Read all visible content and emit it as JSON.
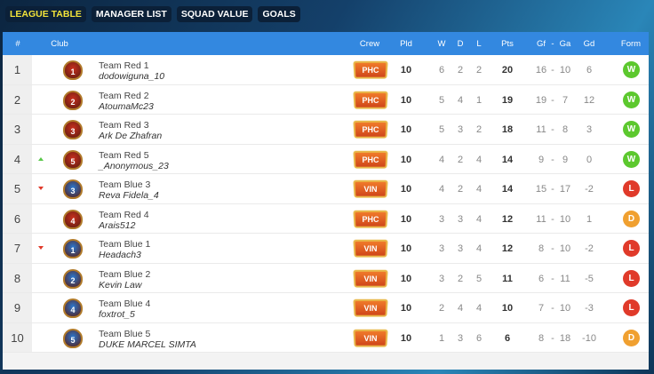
{
  "tabs": [
    {
      "label": "LEAGUE TABLE",
      "active": true
    },
    {
      "label": "MANAGER LIST"
    },
    {
      "label": "SQUAD VALUE"
    },
    {
      "label": "GOALS"
    }
  ],
  "headers": {
    "rank": "#",
    "club": "Club",
    "crew": "Crew",
    "pld": "Pld",
    "w": "W",
    "d": "D",
    "l": "L",
    "pts": "Pts",
    "gf": "Gf",
    "sep": "-",
    "ga": "Ga",
    "gd": "Gd",
    "form": "Form"
  },
  "colors": {
    "red_team": "#c8301e",
    "blue_team": "#2a78d0",
    "win": "#5cc82e",
    "loss": "#e03a2a",
    "draw": "#f0a030",
    "header": "#3388e0"
  },
  "rows": [
    {
      "rank": "1",
      "move": "",
      "badge": "1",
      "side": "red",
      "team": "Team Red 1",
      "manager": "dodowiguna_10",
      "crew": "PHC",
      "pld": "10",
      "w": "6",
      "d": "2",
      "l": "2",
      "pts": "20",
      "gf": "16",
      "sep": "-",
      "ga": "10",
      "gd": "6",
      "form": "W"
    },
    {
      "rank": "2",
      "move": "",
      "badge": "2",
      "side": "red",
      "team": "Team Red 2",
      "manager": "AtoumaMc23",
      "crew": "PHC",
      "pld": "10",
      "w": "5",
      "d": "4",
      "l": "1",
      "pts": "19",
      "gf": "19",
      "sep": "-",
      "ga": "7",
      "gd": "12",
      "form": "W"
    },
    {
      "rank": "3",
      "move": "",
      "badge": "3",
      "side": "red",
      "team": "Team Red 3",
      "manager": "Ark De Zhafran",
      "crew": "PHC",
      "pld": "10",
      "w": "5",
      "d": "3",
      "l": "2",
      "pts": "18",
      "gf": "11",
      "sep": "-",
      "ga": "8",
      "gd": "3",
      "form": "W"
    },
    {
      "rank": "4",
      "move": "up",
      "badge": "5",
      "side": "red",
      "team": "Team Red 5",
      "manager": "_Anonymous_23",
      "crew": "PHC",
      "pld": "10",
      "w": "4",
      "d": "2",
      "l": "4",
      "pts": "14",
      "gf": "9",
      "sep": "-",
      "ga": "9",
      "gd": "0",
      "form": "W"
    },
    {
      "rank": "5",
      "move": "down",
      "badge": "3",
      "side": "blue",
      "team": "Team Blue 3",
      "manager": "Reva Fidela_4",
      "crew": "VIN",
      "pld": "10",
      "w": "4",
      "d": "2",
      "l": "4",
      "pts": "14",
      "gf": "15",
      "sep": "-",
      "ga": "17",
      "gd": "-2",
      "form": "L"
    },
    {
      "rank": "6",
      "move": "",
      "badge": "4",
      "side": "red",
      "team": "Team Red 4",
      "manager": "Arais512",
      "crew": "PHC",
      "pld": "10",
      "w": "3",
      "d": "3",
      "l": "4",
      "pts": "12",
      "gf": "11",
      "sep": "-",
      "ga": "10",
      "gd": "1",
      "form": "D"
    },
    {
      "rank": "7",
      "move": "down",
      "badge": "1",
      "side": "blue",
      "team": "Team Blue 1",
      "manager": "Headach3",
      "crew": "VIN",
      "pld": "10",
      "w": "3",
      "d": "3",
      "l": "4",
      "pts": "12",
      "gf": "8",
      "sep": "-",
      "ga": "10",
      "gd": "-2",
      "form": "L"
    },
    {
      "rank": "8",
      "move": "",
      "badge": "2",
      "side": "blue",
      "team": "Team Blue 2",
      "manager": "Kevin Law",
      "crew": "VIN",
      "pld": "10",
      "w": "3",
      "d": "2",
      "l": "5",
      "pts": "11",
      "gf": "6",
      "sep": "-",
      "ga": "11",
      "gd": "-5",
      "form": "L"
    },
    {
      "rank": "9",
      "move": "",
      "badge": "4",
      "side": "blue",
      "team": "Team Blue 4",
      "manager": "foxtrot_5",
      "crew": "VIN",
      "pld": "10",
      "w": "2",
      "d": "4",
      "l": "4",
      "pts": "10",
      "gf": "7",
      "sep": "-",
      "ga": "10",
      "gd": "-3",
      "form": "L"
    },
    {
      "rank": "10",
      "move": "",
      "badge": "5",
      "side": "blue",
      "team": "Team Blue 5",
      "manager": "DUKE MARCEL SIMTA",
      "crew": "VIN",
      "pld": "10",
      "w": "1",
      "d": "3",
      "l": "6",
      "pts": "6",
      "gf": "8",
      "sep": "-",
      "ga": "18",
      "gd": "-10",
      "form": "D"
    }
  ]
}
